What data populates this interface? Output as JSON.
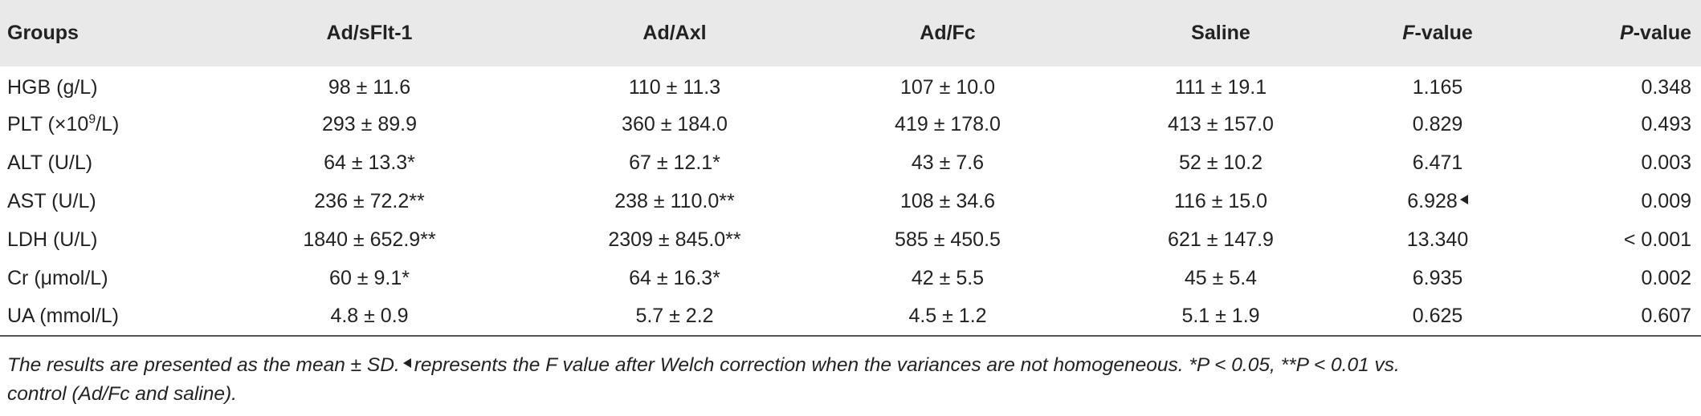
{
  "table": {
    "headers": [
      "Groups",
      "Ad/sFlt-1",
      "Ad/Axl",
      "Ad/Fc",
      "Saline",
      "F",
      "-value",
      "P",
      "-value"
    ],
    "rows": [
      {
        "label": "HGB (g/L)",
        "c1": "98 ± 11.6",
        "c2": "110 ± 11.3",
        "c3": "107 ± 10.0",
        "c4": "111 ± 19.1",
        "f": "1.165",
        "p": "0.348"
      },
      {
        "label_pre": "PLT (×10",
        "label_sup": "9",
        "label_post": "/L)",
        "c1": "293 ± 89.9",
        "c2": "360 ± 184.0",
        "c3": "419 ± 178.0",
        "c4": "413 ± 157.0",
        "f": "0.829",
        "p": "0.493"
      },
      {
        "label": "ALT (U/L)",
        "c1": "64 ± 13.3*",
        "c2": "67 ± 12.1*",
        "c3": "43 ± 7.6",
        "c4": "52 ± 10.2",
        "f": "6.471",
        "p": "0.003"
      },
      {
        "label": "AST (U/L)",
        "c1": "236 ± 72.2**",
        "c2": "238 ± 110.0**",
        "c3": "108 ± 34.6",
        "c4": "116 ± 15.0",
        "f": "6.928",
        "p": "0.009"
      },
      {
        "label": "LDH (U/L)",
        "c1": "1840 ± 652.9**",
        "c2": "2309 ± 845.0**",
        "c3": "585 ± 450.5",
        "c4": "621 ± 147.9",
        "f": "13.340",
        "p": "< 0.001"
      },
      {
        "label": "Cr (μmol/L)",
        "c1": "60 ± 9.1*",
        "c2": "64 ± 16.3*",
        "c3": "42 ± 5.5",
        "c4": "45 ± 5.4",
        "f": "6.935",
        "p": "0.002"
      },
      {
        "label": "UA (mmol/L)",
        "c1": "4.8 ± 0.9",
        "c2": "5.7 ± 2.2",
        "c3": "4.5 ± 1.2",
        "c4": "5.1 ± 1.9",
        "f": "0.625",
        "p": "0.607"
      }
    ]
  },
  "note": {
    "part1": "The results are presented as the mean ± SD.",
    "part2": "represents the F value after Welch correction when the variances are not homogeneous. *P < 0.05, **P < 0.01 vs.",
    "part3": "control (Ad/Fc and saline)."
  }
}
